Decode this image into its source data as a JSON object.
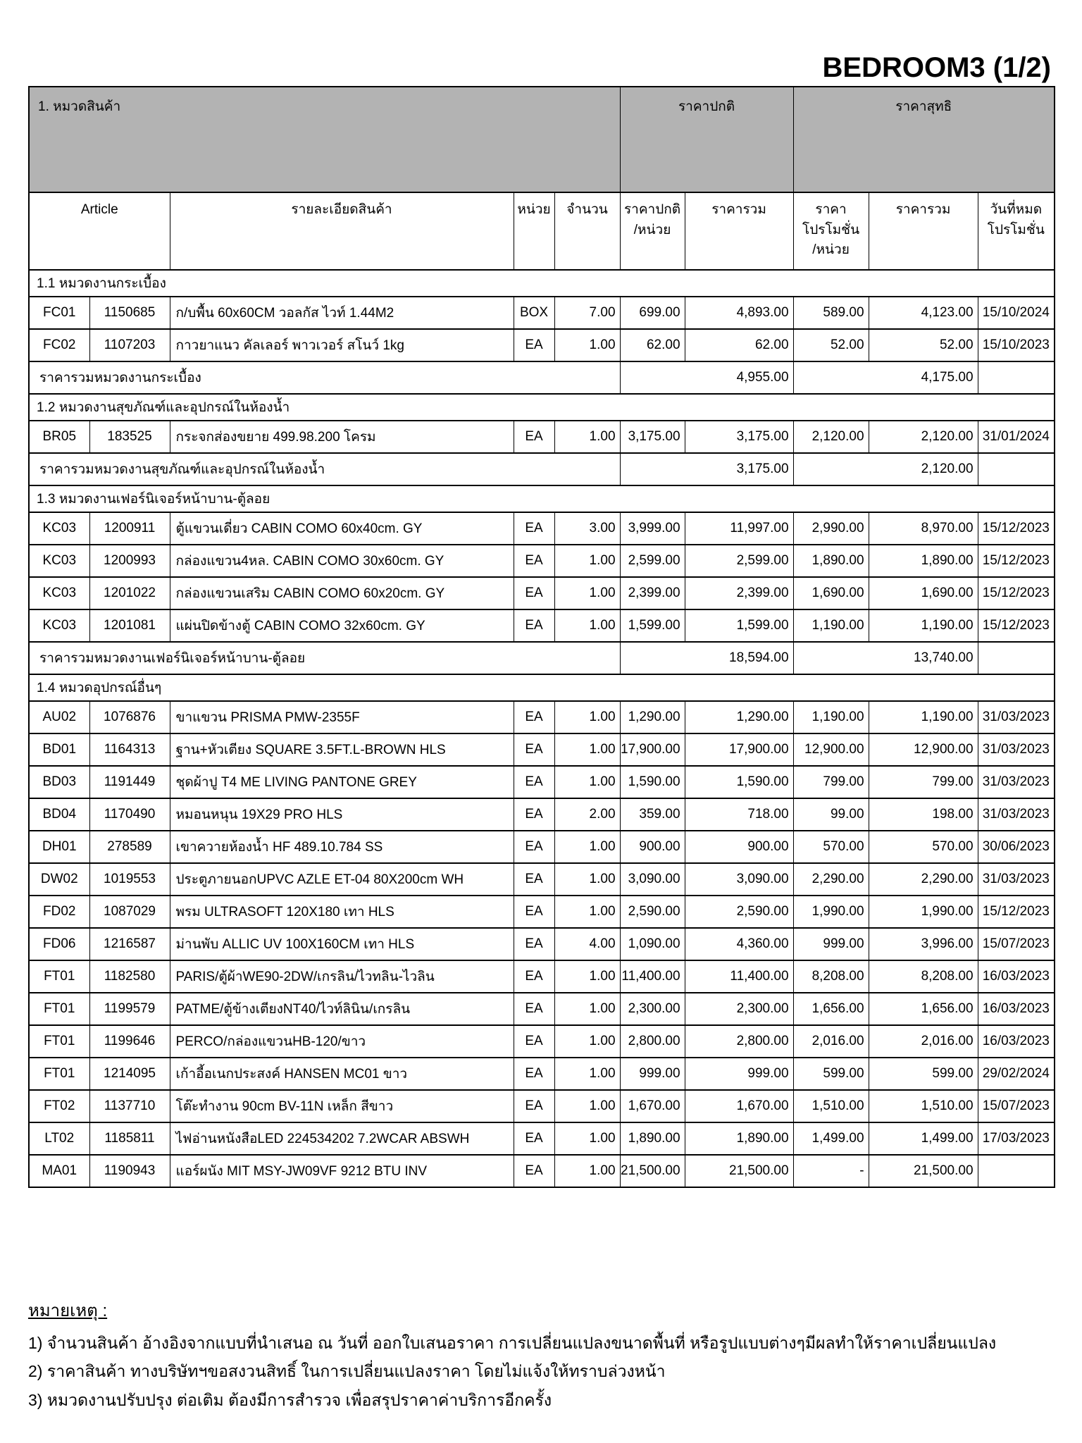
{
  "page_title": "BEDROOM3 (1/2)",
  "table": {
    "group_headers": {
      "items": "1. หมวดสินค้า",
      "normal_price": "ราคาปกติ",
      "net_price": "ราคาสุทธิ"
    },
    "columns": {
      "article": "Article",
      "description": "รายละเอียดสินค้า",
      "unit": "หน่วย",
      "qty": "จำนวน",
      "normal_unit_price": "ราคาปกติ\n/หน่วย",
      "normal_total": "ราคารวม",
      "promo_unit_price": "ราคา\nโปรโมชั่น\n/หน่วย",
      "promo_total": "ราคารวม",
      "promo_end": "วันที่หมด\nโปรโมชั่น"
    },
    "sections": [
      {
        "title": "1.1 หมวดงานกระเบื้อง",
        "rows": [
          {
            "code": "FC01",
            "article_no": "1150685",
            "description": "ก/บพื้น 60x60CM วอลกัส ไวท์ 1.44M2",
            "unit": "BOX",
            "qty": "7.00",
            "unit_price": "699.00",
            "total": "4,893.00",
            "promo_price": "589.00",
            "promo_total": "4,123.00",
            "promo_end": "15/10/2024"
          },
          {
            "code": "FC02",
            "article_no": "1107203",
            "description": "กาวยาแนว คัลเลอร์ พาวเวอร์ สโนว์ 1kg",
            "unit": "EA",
            "qty": "1.00",
            "unit_price": "62.00",
            "total": "62.00",
            "promo_price": "52.00",
            "promo_total": "52.00",
            "promo_end": "15/10/2023"
          }
        ],
        "total_label": "ราคารวมหมวดงานกระเบื้อง",
        "total_normal": "4,955.00",
        "total_net": "4,175.00"
      },
      {
        "title": "1.2 หมวดงานสุขภัณฑ์และอุปกรณ์ในห้องน้ำ",
        "rows": [
          {
            "code": "BR05",
            "article_no": "183525",
            "description": "กระจกส่องขยาย 499.98.200 โครม",
            "unit": "EA",
            "qty": "1.00",
            "unit_price": "3,175.00",
            "total": "3,175.00",
            "promo_price": "2,120.00",
            "promo_total": "2,120.00",
            "promo_end": "31/01/2024"
          }
        ],
        "total_label": "ราคารวมหมวดงานสุขภัณฑ์และอุปกรณ์ในห้องน้ำ",
        "total_normal": "3,175.00",
        "total_net": "2,120.00"
      },
      {
        "title": "1.3 หมวดงานเฟอร์นิเจอร์หน้าบาน-ตู้ลอย",
        "rows": [
          {
            "code": "KC03",
            "article_no": "1200911",
            "description": "ตู้แขวนเดี่ยว CABIN COMO 60x40cm. GY",
            "unit": "EA",
            "qty": "3.00",
            "unit_price": "3,999.00",
            "total": "11,997.00",
            "promo_price": "2,990.00",
            "promo_total": "8,970.00",
            "promo_end": "15/12/2023"
          },
          {
            "code": "KC03",
            "article_no": "1200993",
            "description": "กล่องแขวน4หล. CABIN COMO 30x60cm. GY",
            "unit": "EA",
            "qty": "1.00",
            "unit_price": "2,599.00",
            "total": "2,599.00",
            "promo_price": "1,890.00",
            "promo_total": "1,890.00",
            "promo_end": "15/12/2023"
          },
          {
            "code": "KC03",
            "article_no": "1201022",
            "description": "กล่องแขวนเสริม CABIN COMO 60x20cm. GY",
            "unit": "EA",
            "qty": "1.00",
            "unit_price": "2,399.00",
            "total": "2,399.00",
            "promo_price": "1,690.00",
            "promo_total": "1,690.00",
            "promo_end": "15/12/2023"
          },
          {
            "code": "KC03",
            "article_no": "1201081",
            "description": "แผ่นปิดข้างตู้ CABIN COMO 32x60cm. GY",
            "unit": "EA",
            "qty": "1.00",
            "unit_price": "1,599.00",
            "total": "1,599.00",
            "promo_price": "1,190.00",
            "promo_total": "1,190.00",
            "promo_end": "15/12/2023"
          }
        ],
        "total_label": "ราคารวมหมวดงานเฟอร์นิเจอร์หน้าบาน-ตู้ลอย",
        "total_normal": "18,594.00",
        "total_net": "13,740.00"
      },
      {
        "title": "1.4 หมวดอุปกรณ์อื่นๆ",
        "rows": [
          {
            "code": "AU02",
            "article_no": "1076876",
            "description": "ขาแขวน PRISMA PMW-2355F",
            "unit": "EA",
            "qty": "1.00",
            "unit_price": "1,290.00",
            "total": "1,290.00",
            "promo_price": "1,190.00",
            "promo_total": "1,190.00",
            "promo_end": "31/03/2023"
          },
          {
            "code": "BD01",
            "article_no": "1164313",
            "description": "ฐาน+หัวเตียง SQUARE 3.5FT.L-BROWN HLS",
            "unit": "EA",
            "qty": "1.00",
            "unit_price": "17,900.00",
            "total": "17,900.00",
            "promo_price": "12,900.00",
            "promo_total": "12,900.00",
            "promo_end": "31/03/2023"
          },
          {
            "code": "BD03",
            "article_no": "1191449",
            "description": "ชุดผ้าปู T4 ME LIVING PANTONE GREY",
            "unit": "EA",
            "qty": "1.00",
            "unit_price": "1,590.00",
            "total": "1,590.00",
            "promo_price": "799.00",
            "promo_total": "799.00",
            "promo_end": "31/03/2023"
          },
          {
            "code": "BD04",
            "article_no": "1170490",
            "description": "หมอนหนุน 19X29 PRO HLS",
            "unit": "EA",
            "qty": "2.00",
            "unit_price": "359.00",
            "total": "718.00",
            "promo_price": "99.00",
            "promo_total": "198.00",
            "promo_end": "31/03/2023"
          },
          {
            "code": "DH01",
            "article_no": "278589",
            "description": "เขาควายห้องน้ำ HF 489.10.784 SS",
            "unit": "EA",
            "qty": "1.00",
            "unit_price": "900.00",
            "total": "900.00",
            "promo_price": "570.00",
            "promo_total": "570.00",
            "promo_end": "30/06/2023"
          },
          {
            "code": "DW02",
            "article_no": "1019553",
            "description": "ประตูภายนอกUPVC AZLE ET-04 80X200cm WH",
            "unit": "EA",
            "qty": "1.00",
            "unit_price": "3,090.00",
            "total": "3,090.00",
            "promo_price": "2,290.00",
            "promo_total": "2,290.00",
            "promo_end": "31/03/2023"
          },
          {
            "code": "FD02",
            "article_no": "1087029",
            "description": "พรม ULTRASOFT 120X180 เทา HLS",
            "unit": "EA",
            "qty": "1.00",
            "unit_price": "2,590.00",
            "total": "2,590.00",
            "promo_price": "1,990.00",
            "promo_total": "1,990.00",
            "promo_end": "15/12/2023"
          },
          {
            "code": "FD06",
            "article_no": "1216587",
            "description": "ม่านพับ ALLIC UV 100X160CM เทา HLS",
            "unit": "EA",
            "qty": "4.00",
            "unit_price": "1,090.00",
            "total": "4,360.00",
            "promo_price": "999.00",
            "promo_total": "3,996.00",
            "promo_end": "15/07/2023"
          },
          {
            "code": "FT01",
            "article_no": "1182580",
            "description": "PARIS/ตู้ผ้าWE90-2DW/เกรลิน/ไวทลิน-ไวลิน",
            "unit": "EA",
            "qty": "1.00",
            "unit_price": "11,400.00",
            "total": "11,400.00",
            "promo_price": "8,208.00",
            "promo_total": "8,208.00",
            "promo_end": "16/03/2023"
          },
          {
            "code": "FT01",
            "article_no": "1199579",
            "description": "PATME/ตู้ข้างเตียงNT40/ไวท์ลินิน/เกรลิน",
            "unit": "EA",
            "qty": "1.00",
            "unit_price": "2,300.00",
            "total": "2,300.00",
            "promo_price": "1,656.00",
            "promo_total": "1,656.00",
            "promo_end": "16/03/2023"
          },
          {
            "code": "FT01",
            "article_no": "1199646",
            "description": "PERCO/กล่องแขวนHB-120/ขาว",
            "unit": "EA",
            "qty": "1.00",
            "unit_price": "2,800.00",
            "total": "2,800.00",
            "promo_price": "2,016.00",
            "promo_total": "2,016.00",
            "promo_end": "16/03/2023"
          },
          {
            "code": "FT01",
            "article_no": "1214095",
            "description": "เก้าอี้อเนกประสงค์ HANSEN MC01 ขาว",
            "unit": "EA",
            "qty": "1.00",
            "unit_price": "999.00",
            "total": "999.00",
            "promo_price": "599.00",
            "promo_total": "599.00",
            "promo_end": "29/02/2024"
          },
          {
            "code": "FT02",
            "article_no": "1137710",
            "description": "โต๊ะทำงาน 90cm BV-11N เหล็ก สีขาว",
            "unit": "EA",
            "qty": "1.00",
            "unit_price": "1,670.00",
            "total": "1,670.00",
            "promo_price": "1,510.00",
            "promo_total": "1,510.00",
            "promo_end": "15/07/2023"
          },
          {
            "code": "LT02",
            "article_no": "1185811",
            "description": "ไฟอ่านหนังสือLED 224534202 7.2WCAR ABSWH",
            "unit": "EA",
            "qty": "1.00",
            "unit_price": "1,890.00",
            "total": "1,890.00",
            "promo_price": "1,499.00",
            "promo_total": "1,499.00",
            "promo_end": "17/03/2023"
          },
          {
            "code": "MA01",
            "article_no": "1190943",
            "description": "แอร์ผนัง MIT MSY-JW09VF 9212 BTU INV",
            "unit": "EA",
            "qty": "1.00",
            "unit_price": "21,500.00",
            "total": "21,500.00",
            "promo_price": "-",
            "promo_total": "21,500.00",
            "promo_end": ""
          }
        ],
        "total_label": null
      }
    ]
  },
  "notes": {
    "heading": "หมายเหตุ :",
    "items": [
      "1) จำนวนสินค้า อ้างอิงจากแบบที่นำเสนอ ณ วันที่ ออกใบเสนอราคา การเปลี่ยนแปลงขนาดพื้นที่ หรือรูปแบบต่างๆมีผลทำให้ราคาเปลี่ยนแปลง",
      "2) ราคาสินค้า ทางบริษัทฯขอสงวนสิทธิ์ ในการเปลี่ยนแปลงราคา โดยไม่แจ้งให้ทราบล่วงหน้า",
      "3) หมวดงานปรับปรุง ต่อเติม ต้องมีการสำรวจ เพื่อสรุปราคาค่าบริการอีกครั้ง"
    ]
  },
  "colors": {
    "header_band_gray": "#b3b3b3",
    "border_black": "#000000",
    "page_background": "#ffffff"
  }
}
